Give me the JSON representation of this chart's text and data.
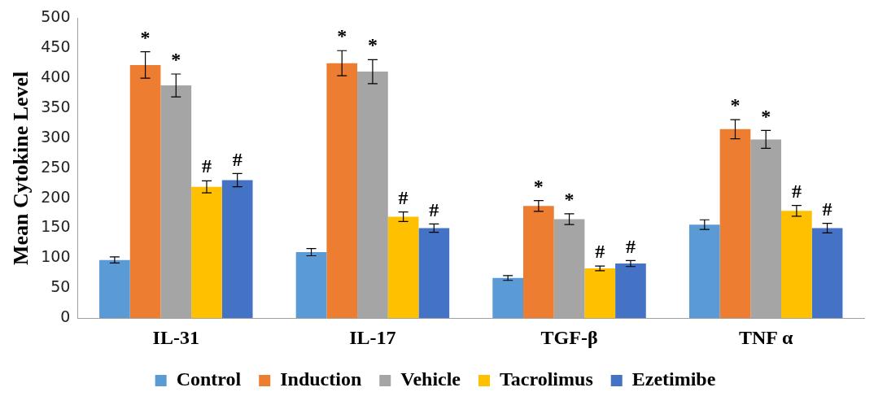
{
  "chart_data": {
    "type": "bar",
    "ylabel": "Mean Cytokine Level",
    "categories": [
      "IL-31",
      "IL-17",
      "TGF-β",
      "TNF α"
    ],
    "series": [
      {
        "name": "Control",
        "color": "#5b9bd5",
        "values": [
          97,
          110,
          67,
          156
        ],
        "errors": [
          5,
          6,
          4,
          8
        ]
      },
      {
        "name": "Induction",
        "color": "#ed7d31",
        "values": [
          422,
          425,
          187,
          315
        ],
        "errors": [
          22,
          21,
          9,
          16
        ],
        "value_labels": [
          "*",
          "*",
          "*",
          "*"
        ]
      },
      {
        "name": "Vehicle",
        "color": "#a5a5a5",
        "values": [
          388,
          411,
          165,
          298
        ],
        "errors": [
          19,
          20,
          9,
          15
        ],
        "value_labels": [
          "*",
          "*",
          "*",
          "*"
        ]
      },
      {
        "name": "Tacrolimus",
        "color": "#ffc000",
        "values": [
          219,
          169,
          83,
          179
        ],
        "errors": [
          10,
          8,
          4,
          9
        ],
        "value_labels": [
          "#",
          "#",
          "#",
          "#"
        ]
      },
      {
        "name": "Ezetimibe",
        "color": "#4472c4",
        "values": [
          230,
          150,
          91,
          150
        ],
        "errors": [
          11,
          7,
          5,
          8
        ],
        "value_labels": [
          "#",
          "#",
          "#",
          "#"
        ]
      }
    ],
    "ylim": [
      0,
      500
    ],
    "yticks": [
      0,
      50,
      100,
      150,
      200,
      250,
      300,
      350,
      400,
      450,
      500
    ],
    "grid": false,
    "legend": "bottom"
  }
}
